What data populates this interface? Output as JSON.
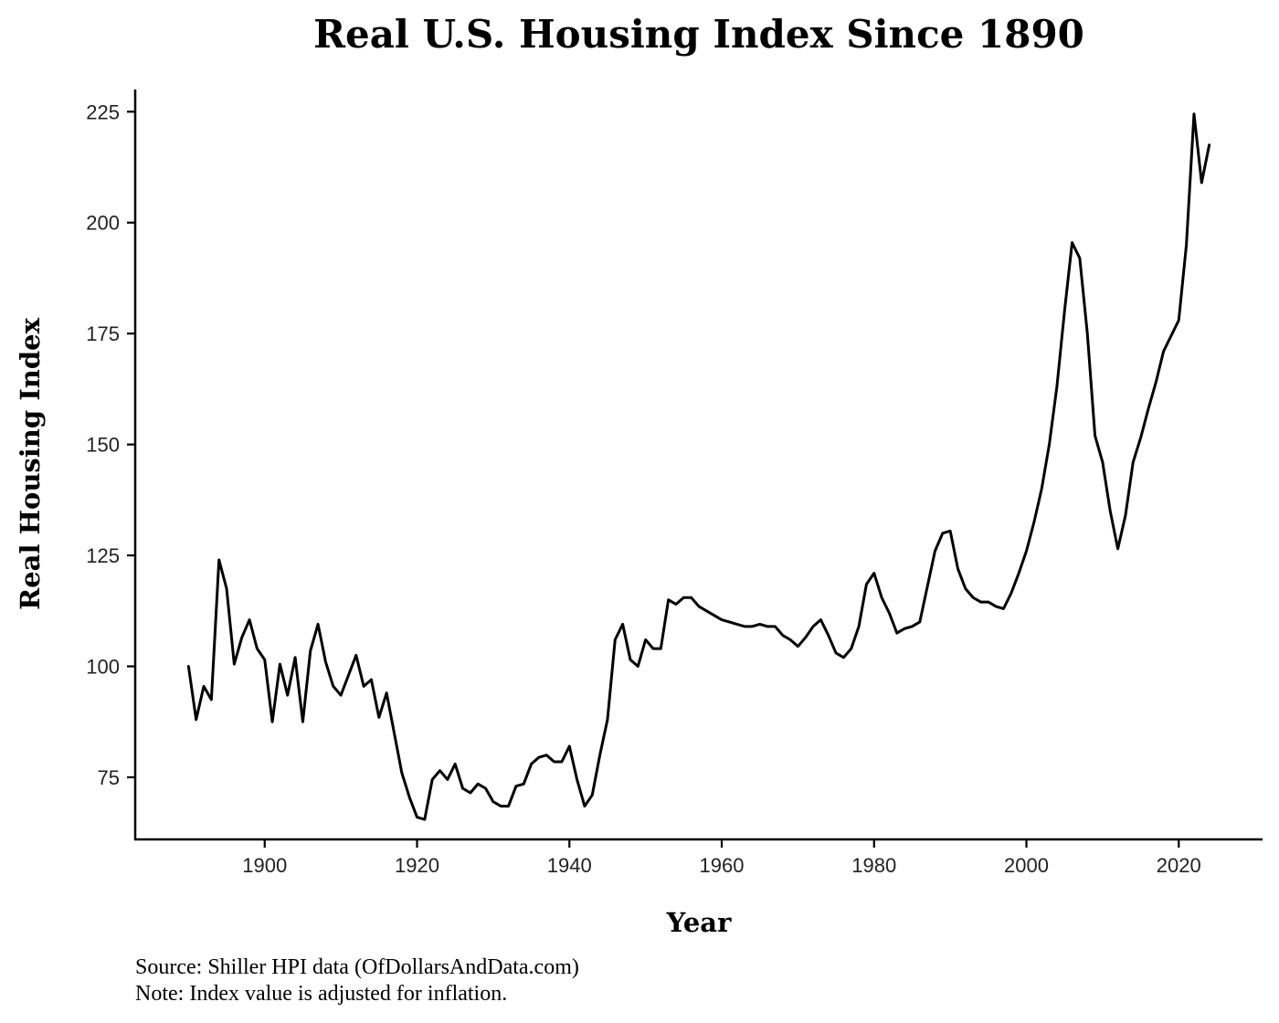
{
  "chart_data": {
    "type": "line",
    "title": "Real U.S. Housing Index Since 1890",
    "xlabel": "Year",
    "ylabel": "Real Housing Index",
    "xlim": [
      1883,
      2031
    ],
    "ylim": [
      61,
      230
    ],
    "x_ticks": [
      1900,
      1920,
      1940,
      1960,
      1980,
      2000,
      2020
    ],
    "x_tick_labels": [
      "1900",
      "1920",
      "1940",
      "1960",
      "1980",
      "2000",
      "2020"
    ],
    "y_ticks": [
      75,
      100,
      125,
      150,
      175,
      200,
      225
    ],
    "y_tick_labels": [
      "75",
      "100",
      "125",
      "150",
      "175",
      "200",
      "225"
    ],
    "grid": false,
    "series": [
      {
        "name": "Real Housing Index",
        "color": "#000000",
        "points": [
          [
            1890,
            100
          ],
          [
            1891,
            88
          ],
          [
            1892,
            95.5
          ],
          [
            1893,
            92.5
          ],
          [
            1894,
            124
          ],
          [
            1895,
            117.5
          ],
          [
            1896,
            100.5
          ],
          [
            1897,
            106.5
          ],
          [
            1898,
            110.5
          ],
          [
            1899,
            104
          ],
          [
            1900,
            101.5
          ],
          [
            1901,
            87.5
          ],
          [
            1902,
            100.5
          ],
          [
            1903,
            93.5
          ],
          [
            1904,
            102
          ],
          [
            1905,
            87.5
          ],
          [
            1906,
            103.5
          ],
          [
            1907,
            109.5
          ],
          [
            1908,
            101
          ],
          [
            1909,
            95.5
          ],
          [
            1910,
            93.5
          ],
          [
            1911,
            98
          ],
          [
            1912,
            102.5
          ],
          [
            1913,
            95.5
          ],
          [
            1914,
            97
          ],
          [
            1915,
            88.5
          ],
          [
            1916,
            94
          ],
          [
            1917,
            85
          ],
          [
            1918,
            76
          ],
          [
            1919,
            70.5
          ],
          [
            1920,
            66
          ],
          [
            1921,
            65.5
          ],
          [
            1922,
            74.5
          ],
          [
            1923,
            76.5
          ],
          [
            1924,
            74.5
          ],
          [
            1925,
            78
          ],
          [
            1926,
            72.5
          ],
          [
            1927,
            71.5
          ],
          [
            1928,
            73.5
          ],
          [
            1929,
            72.5
          ],
          [
            1930,
            69.5
          ],
          [
            1931,
            68.5
          ],
          [
            1932,
            68.5
          ],
          [
            1933,
            73
          ],
          [
            1934,
            73.5
          ],
          [
            1935,
            78
          ],
          [
            1936,
            79.5
          ],
          [
            1937,
            80
          ],
          [
            1938,
            78.5
          ],
          [
            1939,
            78.5
          ],
          [
            1940,
            82
          ],
          [
            1941,
            74.5
          ],
          [
            1942,
            68.5
          ],
          [
            1943,
            71
          ],
          [
            1944,
            80
          ],
          [
            1945,
            88
          ],
          [
            1946,
            106
          ],
          [
            1947,
            109.5
          ],
          [
            1948,
            101.5
          ],
          [
            1949,
            100
          ],
          [
            1950,
            106
          ],
          [
            1951,
            104
          ],
          [
            1952,
            104
          ],
          [
            1953,
            115
          ],
          [
            1954,
            114
          ],
          [
            1955,
            115.5
          ],
          [
            1956,
            115.5
          ],
          [
            1957,
            113.5
          ],
          [
            1958,
            112.5
          ],
          [
            1959,
            111.5
          ],
          [
            1960,
            110.5
          ],
          [
            1961,
            110
          ],
          [
            1962,
            109.5
          ],
          [
            1963,
            109
          ],
          [
            1964,
            109
          ],
          [
            1965,
            109.5
          ],
          [
            1966,
            109
          ],
          [
            1967,
            109
          ],
          [
            1968,
            107
          ],
          [
            1969,
            106
          ],
          [
            1970,
            104.5
          ],
          [
            1971,
            106.5
          ],
          [
            1972,
            109
          ],
          [
            1973,
            110.5
          ],
          [
            1974,
            107
          ],
          [
            1975,
            103
          ],
          [
            1976,
            102
          ],
          [
            1977,
            104
          ],
          [
            1978,
            109
          ],
          [
            1979,
            118.5
          ],
          [
            1980,
            121
          ],
          [
            1981,
            115.5
          ],
          [
            1982,
            112
          ],
          [
            1983,
            107.5
          ],
          [
            1984,
            108.5
          ],
          [
            1985,
            109
          ],
          [
            1986,
            110
          ],
          [
            1987,
            118
          ],
          [
            1988,
            126
          ],
          [
            1989,
            130
          ],
          [
            1990,
            130.5
          ],
          [
            1991,
            122
          ],
          [
            1992,
            117.5
          ],
          [
            1993,
            115.5
          ],
          [
            1994,
            114.5
          ],
          [
            1995,
            114.5
          ],
          [
            1996,
            113.5
          ],
          [
            1997,
            113
          ],
          [
            1998,
            116.5
          ],
          [
            1999,
            121
          ],
          [
            2000,
            126
          ],
          [
            2001,
            132.5
          ],
          [
            2002,
            140
          ],
          [
            2003,
            150
          ],
          [
            2004,
            163
          ],
          [
            2005,
            180
          ],
          [
            2006,
            195.5
          ],
          [
            2007,
            192
          ],
          [
            2008,
            175
          ],
          [
            2009,
            152
          ],
          [
            2010,
            146
          ],
          [
            2011,
            135
          ],
          [
            2012,
            126.5
          ],
          [
            2013,
            134
          ],
          [
            2014,
            146
          ],
          [
            2015,
            151.5
          ],
          [
            2016,
            158
          ],
          [
            2017,
            164
          ],
          [
            2018,
            171
          ],
          [
            2019,
            174.5
          ],
          [
            2020,
            178
          ],
          [
            2021,
            195
          ],
          [
            2022,
            224.5
          ],
          [
            2023,
            209
          ],
          [
            2024,
            217.5
          ]
        ]
      }
    ],
    "notes": [
      "Source: Shiller HPI data (OfDollarsAndData.com)",
      "Note: Index value is adjusted for inflation."
    ]
  }
}
